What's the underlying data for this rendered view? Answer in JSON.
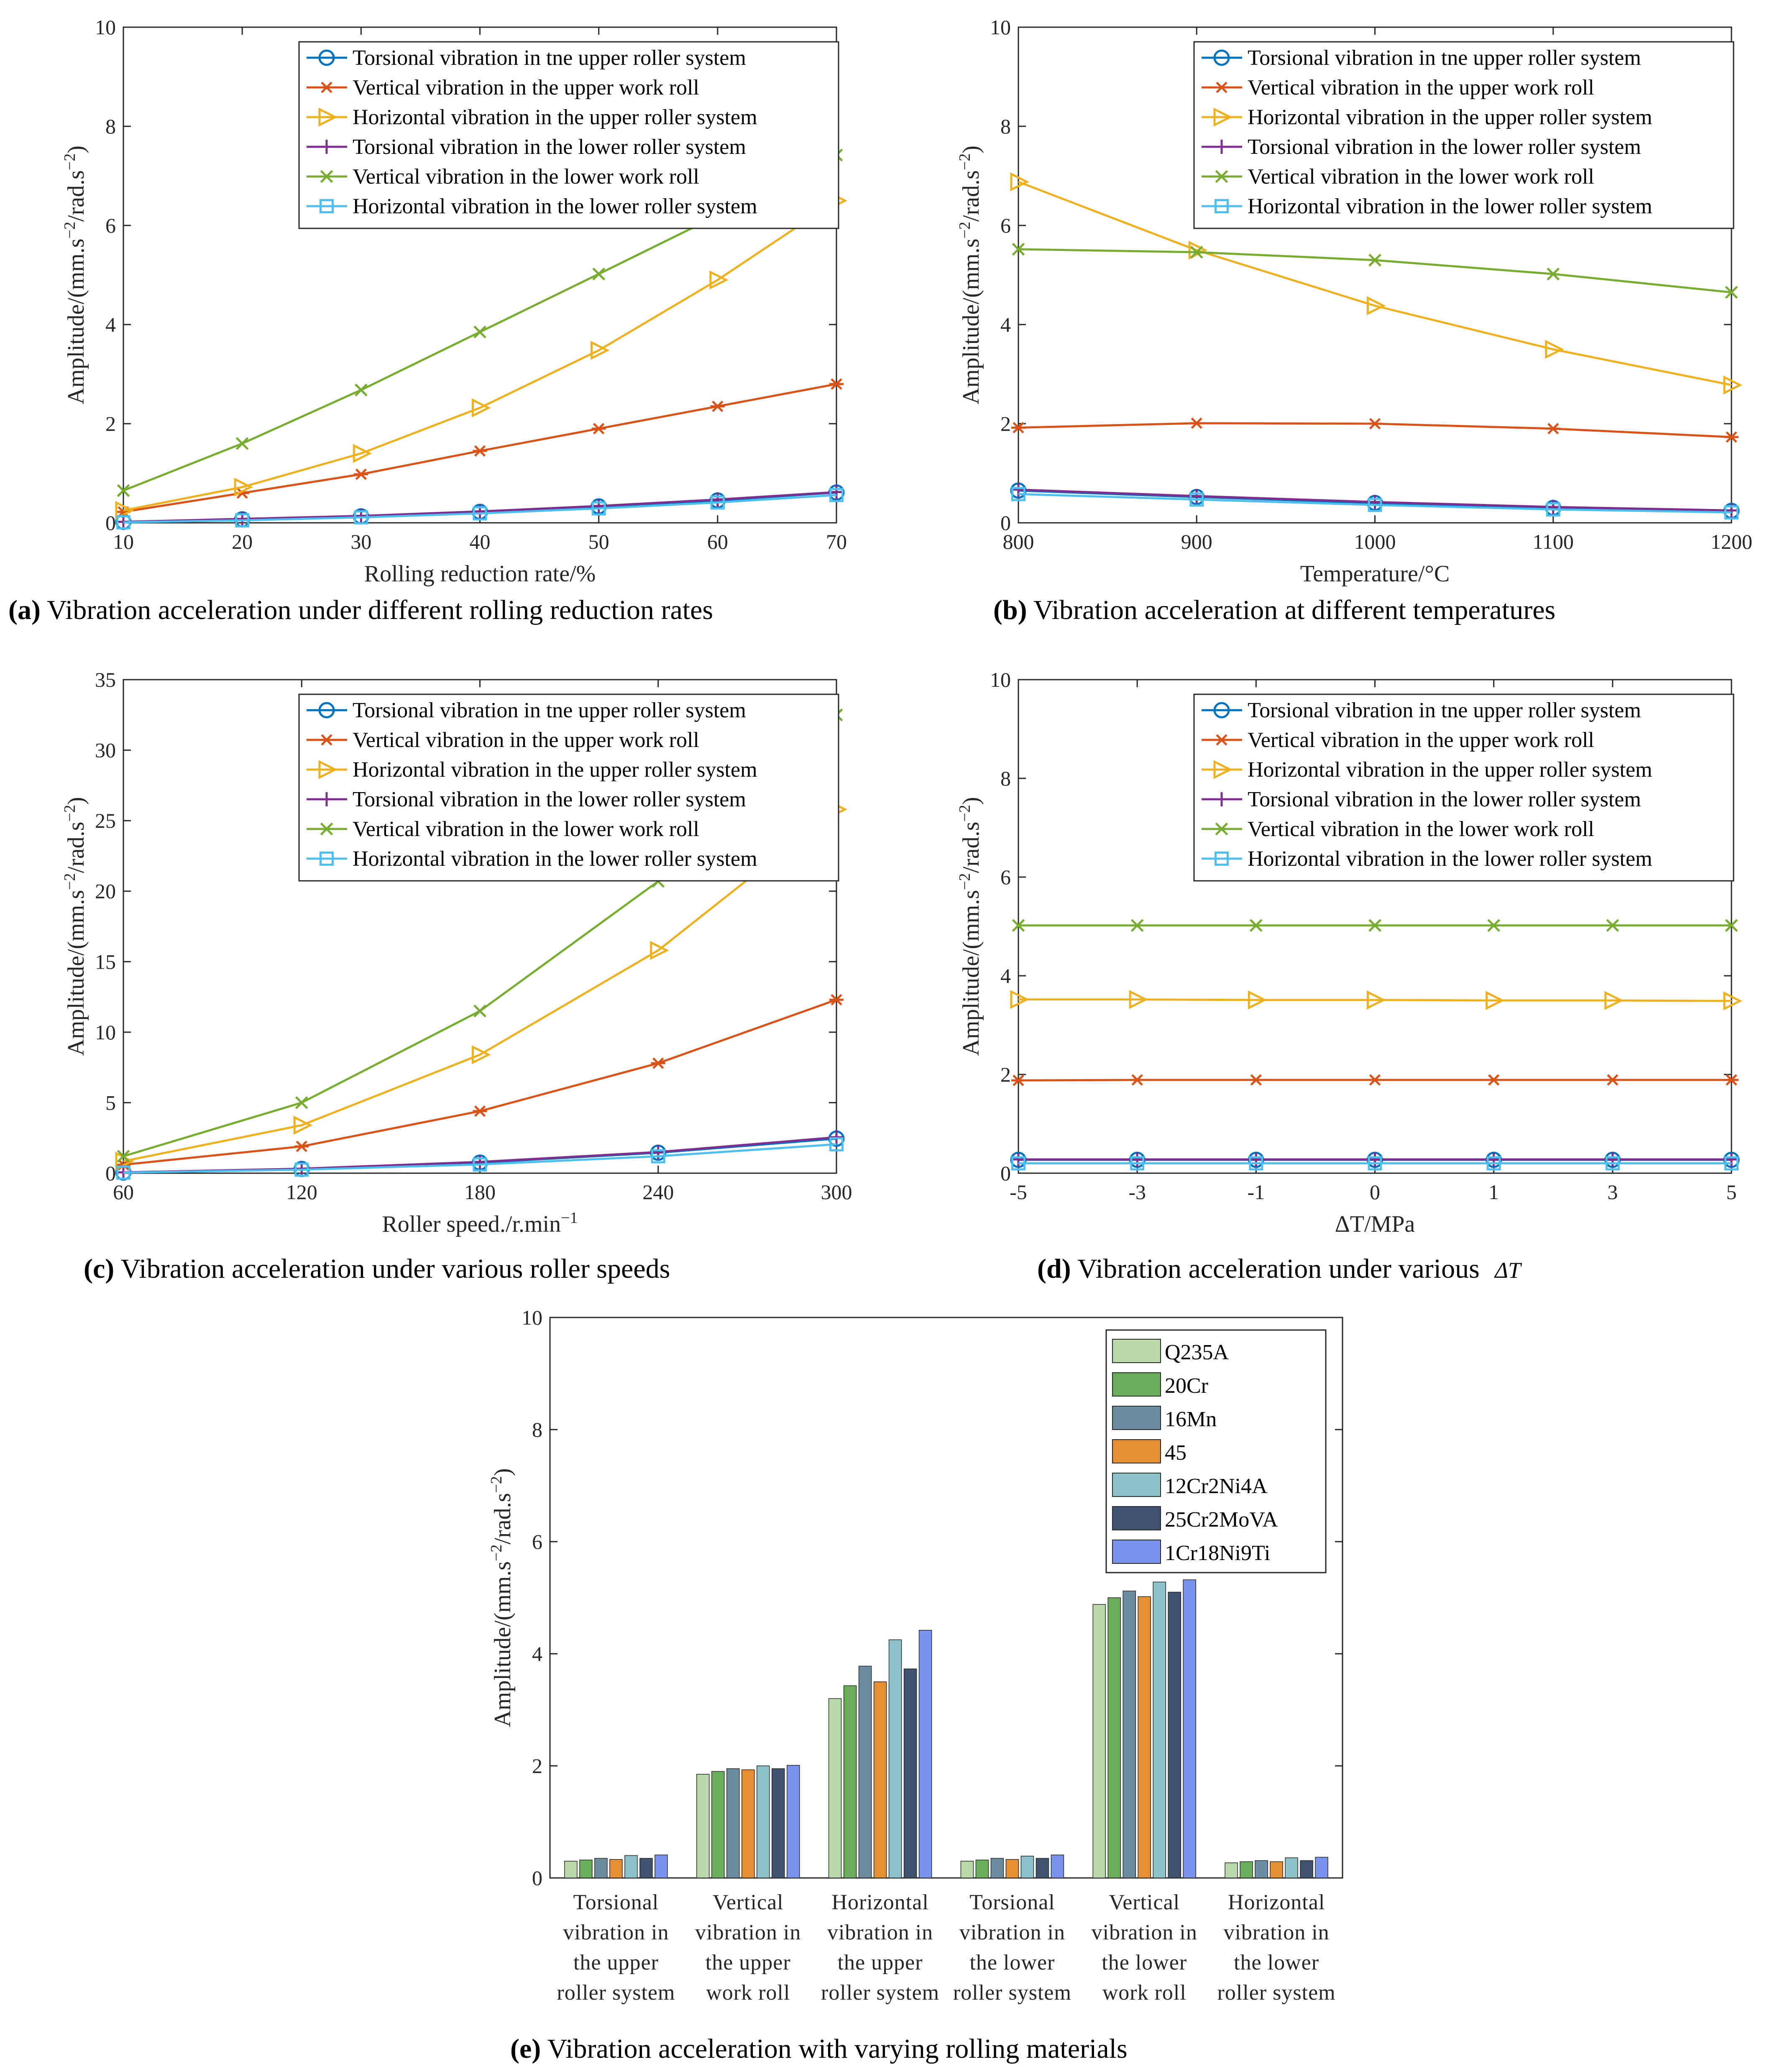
{
  "chart_data": [
    {
      "id": "a",
      "type": "line",
      "caption_prefix": "(a)",
      "caption": " Vibration acceleration under different rolling reduction rates",
      "xlabel": "Rolling reduction rate/%",
      "ylabel": "Amplitude/(mm.s−2/rad.s−2)",
      "x": [
        10,
        20,
        30,
        40,
        50,
        60,
        70
      ],
      "xticks": [
        "10",
        "20",
        "30",
        "40",
        "50",
        "60",
        "70"
      ],
      "ylim": [
        0,
        10
      ],
      "yticks": [
        "0",
        "2",
        "4",
        "6",
        "8",
        "10"
      ],
      "series": [
        {
          "name": "Torsional vibration in tne upper roller system",
          "values": [
            0.02,
            0.07,
            0.13,
            0.22,
            0.33,
            0.45,
            0.61
          ]
        },
        {
          "name": "Vertical vibration in the upper work roll",
          "values": [
            0.22,
            0.6,
            0.98,
            1.45,
            1.9,
            2.35,
            2.8
          ]
        },
        {
          "name": "Horizontal vibration in the upper roller system",
          "values": [
            0.25,
            0.72,
            1.4,
            2.32,
            3.48,
            4.9,
            6.5
          ]
        },
        {
          "name": "Torsional vibration in the lower roller system",
          "values": [
            0.02,
            0.08,
            0.14,
            0.23,
            0.34,
            0.47,
            0.62
          ]
        },
        {
          "name": "Vertical vibration in the lower work roll",
          "values": [
            0.65,
            1.6,
            2.68,
            3.85,
            5.02,
            6.2,
            7.42
          ]
        },
        {
          "name": "Horizontal vibration in the lower roller system",
          "values": [
            0.01,
            0.05,
            0.11,
            0.19,
            0.29,
            0.41,
            0.56
          ]
        }
      ]
    },
    {
      "id": "b",
      "type": "line",
      "caption_prefix": "(b)",
      "caption": " Vibration acceleration at different temperatures",
      "xlabel": "Temperature/°C",
      "ylabel": "Amplitude/(mm.s−2/rad.s−2)",
      "x": [
        800,
        900,
        1000,
        1100,
        1200
      ],
      "xticks": [
        "800",
        "900",
        "1000",
        "1100",
        "1200"
      ],
      "ylim": [
        0,
        10
      ],
      "yticks": [
        "0",
        "2",
        "4",
        "6",
        "8",
        "10"
      ],
      "series": [
        {
          "name": "Torsional vibration in tne upper roller system",
          "values": [
            0.65,
            0.52,
            0.4,
            0.3,
            0.24
          ]
        },
        {
          "name": "Vertical vibration in the upper work roll",
          "values": [
            1.92,
            2.01,
            2.0,
            1.9,
            1.73
          ]
        },
        {
          "name": "Horizontal vibration in the upper roller system",
          "values": [
            6.88,
            5.5,
            4.38,
            3.5,
            2.78
          ]
        },
        {
          "name": "Torsional vibration in the lower roller system",
          "values": [
            0.67,
            0.54,
            0.42,
            0.32,
            0.25
          ]
        },
        {
          "name": "Vertical vibration in the lower work roll",
          "values": [
            5.52,
            5.46,
            5.3,
            5.02,
            4.65
          ]
        },
        {
          "name": "Horizontal vibration in the lower roller system",
          "values": [
            0.58,
            0.47,
            0.36,
            0.27,
            0.21
          ]
        }
      ]
    },
    {
      "id": "c",
      "type": "line",
      "caption_prefix": "(c)",
      "caption": " Vibration acceleration under various roller speeds",
      "xlabel": "Roller speed./r.min−1",
      "ylabel": "Amplitude/(mm.s−2/rad.s−2)",
      "x": [
        60,
        120,
        180,
        240,
        300
      ],
      "xticks": [
        "60",
        "120",
        "180",
        "240",
        "300"
      ],
      "ylim": [
        0,
        35
      ],
      "yticks": [
        "0",
        "5",
        "10",
        "15",
        "20",
        "25",
        "30",
        "35"
      ],
      "series": [
        {
          "name": "Torsional vibration in tne upper roller system",
          "values": [
            0.05,
            0.3,
            0.75,
            1.45,
            2.45
          ]
        },
        {
          "name": "Vertical vibration in the upper work roll",
          "values": [
            0.6,
            1.9,
            4.4,
            7.8,
            12.3
          ]
        },
        {
          "name": "Horizontal vibration in the upper roller system",
          "values": [
            0.85,
            3.4,
            8.4,
            15.8,
            25.8
          ]
        },
        {
          "name": "Torsional vibration in the lower roller system",
          "values": [
            0.06,
            0.32,
            0.8,
            1.5,
            2.55
          ]
        },
        {
          "name": "Vertical vibration in the lower work roll",
          "values": [
            1.2,
            5.0,
            11.5,
            20.7,
            32.5
          ]
        },
        {
          "name": "Horizontal vibration in the lower roller system",
          "values": [
            0.04,
            0.25,
            0.62,
            1.2,
            2.05
          ]
        }
      ]
    },
    {
      "id": "d",
      "type": "line",
      "caption_prefix": "(d)",
      "caption": " Vibration acceleration under various ",
      "caption_symbol": "ΔT",
      "xlabel": "ΔT/MPa",
      "ylabel": "Amplitude/(mm.s−2/rad.s−2)",
      "x": [
        -5,
        -3,
        -1,
        0,
        1,
        3,
        5
      ],
      "xticks": [
        "-5",
        "-3",
        "-1",
        "0",
        "1",
        "3",
        "5"
      ],
      "ylim": [
        0,
        10
      ],
      "yticks": [
        "0",
        "2",
        "4",
        "6",
        "8",
        "10"
      ],
      "series": [
        {
          "name": "Torsional vibration in tne upper roller system",
          "values": [
            0.27,
            0.27,
            0.27,
            0.27,
            0.27,
            0.27,
            0.27
          ]
        },
        {
          "name": "Vertical vibration in the upper work roll",
          "values": [
            1.88,
            1.89,
            1.89,
            1.89,
            1.89,
            1.89,
            1.89
          ]
        },
        {
          "name": "Horizontal vibration in the upper roller system",
          "values": [
            3.52,
            3.52,
            3.51,
            3.51,
            3.5,
            3.5,
            3.49
          ]
        },
        {
          "name": "Torsional vibration in the lower roller system",
          "values": [
            0.28,
            0.28,
            0.28,
            0.28,
            0.28,
            0.28,
            0.28
          ]
        },
        {
          "name": "Vertical vibration in the lower work roll",
          "values": [
            5.02,
            5.02,
            5.02,
            5.02,
            5.02,
            5.02,
            5.02
          ]
        },
        {
          "name": "Horizontal vibration in the lower roller system",
          "values": [
            0.2,
            0.2,
            0.2,
            0.2,
            0.2,
            0.2,
            0.2
          ]
        }
      ]
    },
    {
      "id": "e",
      "type": "bar",
      "caption_prefix": "(e)",
      "caption": " Vibration acceleration with varying rolling materials",
      "ylabel": "Amplitude/(mm.s−2/rad.s−2)",
      "ylim": [
        0,
        10
      ],
      "yticks": [
        "0",
        "2",
        "4",
        "6",
        "8",
        "10"
      ],
      "categories": [
        [
          "Torsional",
          "vibration in",
          "the upper",
          "roller system"
        ],
        [
          "Vertical",
          "vibration in",
          "the upper",
          "work roll"
        ],
        [
          "Horizontal",
          "vibration in",
          "the upper",
          "roller system"
        ],
        [
          "Torsional",
          "vibration in",
          "the lower",
          "roller system"
        ],
        [
          "Vertical",
          "vibration in",
          "the lower",
          "work roll"
        ],
        [
          "Horizontal",
          "vibration in",
          "the lower",
          "roller system"
        ]
      ],
      "series": [
        {
          "name": "Q235A",
          "values": [
            0.3,
            1.85,
            3.2,
            0.3,
            4.88,
            0.27
          ]
        },
        {
          "name": "20Cr",
          "values": [
            0.32,
            1.9,
            3.43,
            0.32,
            5.0,
            0.29
          ]
        },
        {
          "name": "16Mn",
          "values": [
            0.35,
            1.95,
            3.78,
            0.35,
            5.12,
            0.31
          ]
        },
        {
          "name": "45",
          "values": [
            0.33,
            1.93,
            3.5,
            0.33,
            5.02,
            0.29
          ]
        },
        {
          "name": "12Cr2Ni4A",
          "values": [
            0.4,
            2.0,
            4.25,
            0.39,
            5.28,
            0.36
          ]
        },
        {
          "name": "25Cr2MoVA",
          "values": [
            0.35,
            1.95,
            3.73,
            0.35,
            5.1,
            0.31
          ]
        },
        {
          "name": "1Cr18Ni9Ti",
          "values": [
            0.41,
            2.01,
            4.42,
            0.41,
            5.32,
            0.37
          ]
        }
      ]
    }
  ],
  "colors": {
    "line": [
      "#0072BD",
      "#D95319",
      "#EDB120",
      "#7E2F8E",
      "#77AC30",
      "#4DBEEE"
    ],
    "bar": [
      "#B9D9AA",
      "#6AAE5B",
      "#6C8DA0",
      "#E58E34",
      "#8CC2C8",
      "#3F5270",
      "#7B93EC"
    ],
    "axis": "#262626"
  },
  "markers": {
    "line": [
      "circle-marker",
      "asterisk-marker",
      "triangle-right-marker",
      "plus-marker",
      "x-marker",
      "square-marker"
    ]
  }
}
